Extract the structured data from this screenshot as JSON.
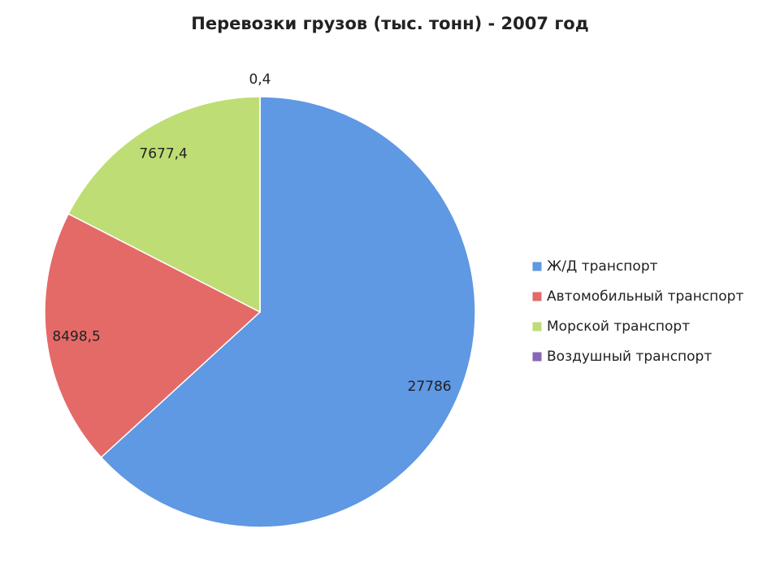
{
  "chart_data": {
    "type": "pie",
    "title": "Перевозки грузов (тыс. тонн) - 2007 год",
    "categories": [
      "Ж/Д транспорт",
      "Автомобильный транспорт",
      "Морской транспорт",
      "Воздушный транспорт"
    ],
    "values": [
      27786,
      8498.5,
      7677.4,
      0.4
    ],
    "value_labels": [
      "27786",
      "8498,5",
      "7677,4",
      "0,4"
    ],
    "colors": [
      "#5f98e3",
      "#e46a68",
      "#bedd74",
      "#8766b4"
    ],
    "legend": "right"
  }
}
